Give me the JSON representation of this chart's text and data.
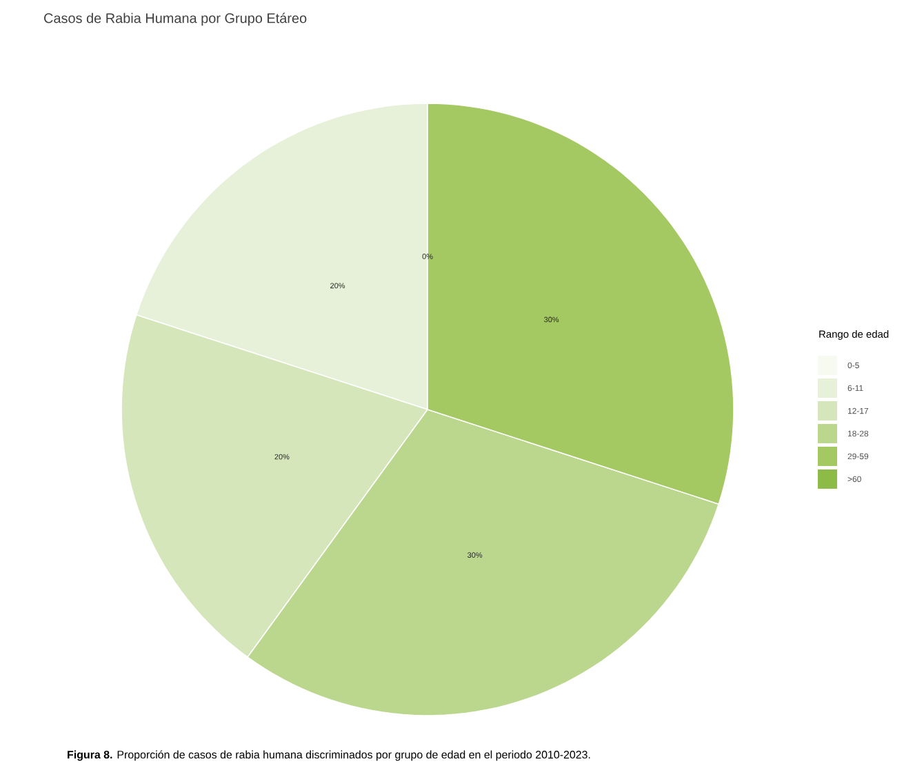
{
  "chart_data": {
    "type": "pie",
    "title": "Casos de Rabia Humana por Grupo Etáreo",
    "legend_title": "Rango de edad",
    "legend": "right",
    "categories": [
      "0-5",
      "6-11",
      "12-17",
      "18-28",
      "29-59",
      ">60"
    ],
    "values": [
      0,
      20,
      20,
      30,
      30,
      0
    ],
    "value_labels": [
      "0%",
      "20%",
      "20%",
      "30%",
      "30%",
      null
    ],
    "colors": [
      "#f7faf0",
      "#e7f0d8",
      "#d5e6ba",
      "#bbd78e",
      "#a4c862",
      "#8dbb47"
    ],
    "annotations": [
      "**Figura 8.** Proporción de casos de rabia humana discriminados por grupo de edad en el periodo 2010-2023."
    ]
  }
}
